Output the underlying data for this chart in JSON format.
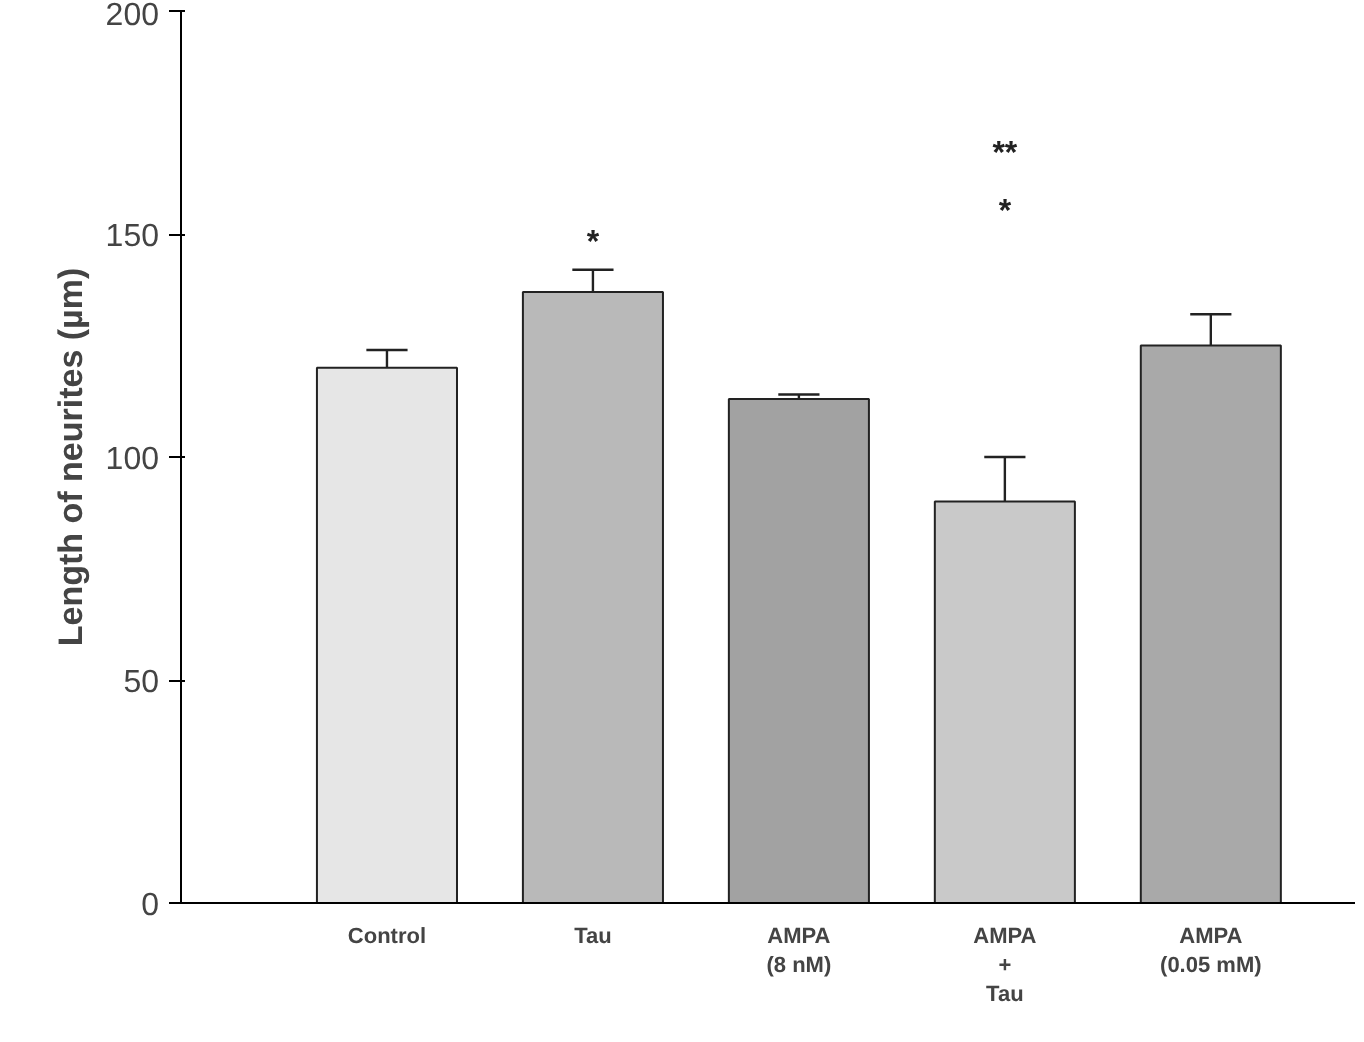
{
  "chart_data": {
    "type": "bar",
    "ylabel": "Length of neurites (µm)",
    "categories": [
      "Control",
      "Tau",
      "AMPA\n(8 nM)",
      "AMPA\n+\nTau",
      "AMPA\n(0.05 mM)"
    ],
    "values": [
      120,
      137,
      113,
      90,
      125
    ],
    "errors": [
      4,
      5,
      1,
      10,
      7
    ],
    "colors": [
      "#e6e6e6",
      "#b9b9b9",
      "#a2a2a2",
      "#c9c9c9",
      "#a9a9a9"
    ],
    "ylim": [
      0,
      200
    ],
    "yticks": [
      0,
      50,
      100,
      150,
      200
    ],
    "grid": false,
    "annotations": [
      "*",
      "**",
      "*"
    ]
  }
}
